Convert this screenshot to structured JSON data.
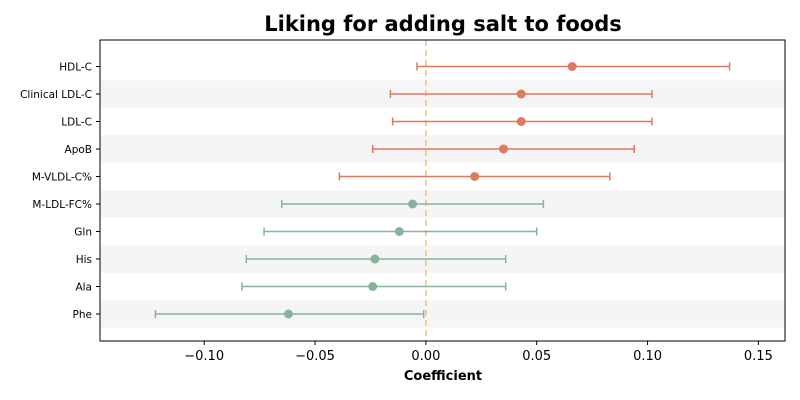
{
  "chart_data": {
    "type": "forest",
    "title": "Liking for adding salt to foods",
    "xlabel": "Coefficient",
    "ylabel": "",
    "xlim": [
      -0.147,
      0.162
    ],
    "xticks": [
      -0.1,
      -0.05,
      0.0,
      0.05,
      0.1,
      0.15
    ],
    "xtick_labels": [
      "−0.10",
      "−0.05",
      "0.00",
      "0.05",
      "0.10",
      "0.15"
    ],
    "reference_line": {
      "x": 0.0,
      "style": "dashed",
      "color": "#f5c27a"
    },
    "colors": {
      "positive": "#de7a5f",
      "negative": "#86b49b",
      "band": "#f5f5f5"
    },
    "grid": false,
    "alternating_bands": true,
    "rows": [
      {
        "label": "HDL-C",
        "estimate": 0.066,
        "ci_low": -0.004,
        "ci_high": 0.137
      },
      {
        "label": "Clinical LDL-C",
        "estimate": 0.043,
        "ci_low": -0.016,
        "ci_high": 0.102
      },
      {
        "label": "LDL-C",
        "estimate": 0.043,
        "ci_low": -0.015,
        "ci_high": 0.102
      },
      {
        "label": "ApoB",
        "estimate": 0.035,
        "ci_low": -0.024,
        "ci_high": 0.094
      },
      {
        "label": "M-VLDL-C%",
        "estimate": 0.022,
        "ci_low": -0.039,
        "ci_high": 0.083
      },
      {
        "label": "M-LDL-FC%",
        "estimate": -0.006,
        "ci_low": -0.065,
        "ci_high": 0.053
      },
      {
        "label": "Gln",
        "estimate": -0.012,
        "ci_low": -0.073,
        "ci_high": 0.05
      },
      {
        "label": "His",
        "estimate": -0.023,
        "ci_low": -0.081,
        "ci_high": 0.036
      },
      {
        "label": "Ala",
        "estimate": -0.024,
        "ci_low": -0.083,
        "ci_high": 0.036
      },
      {
        "label": "Phe",
        "estimate": -0.062,
        "ci_low": -0.122,
        "ci_high": -0.001
      }
    ]
  }
}
